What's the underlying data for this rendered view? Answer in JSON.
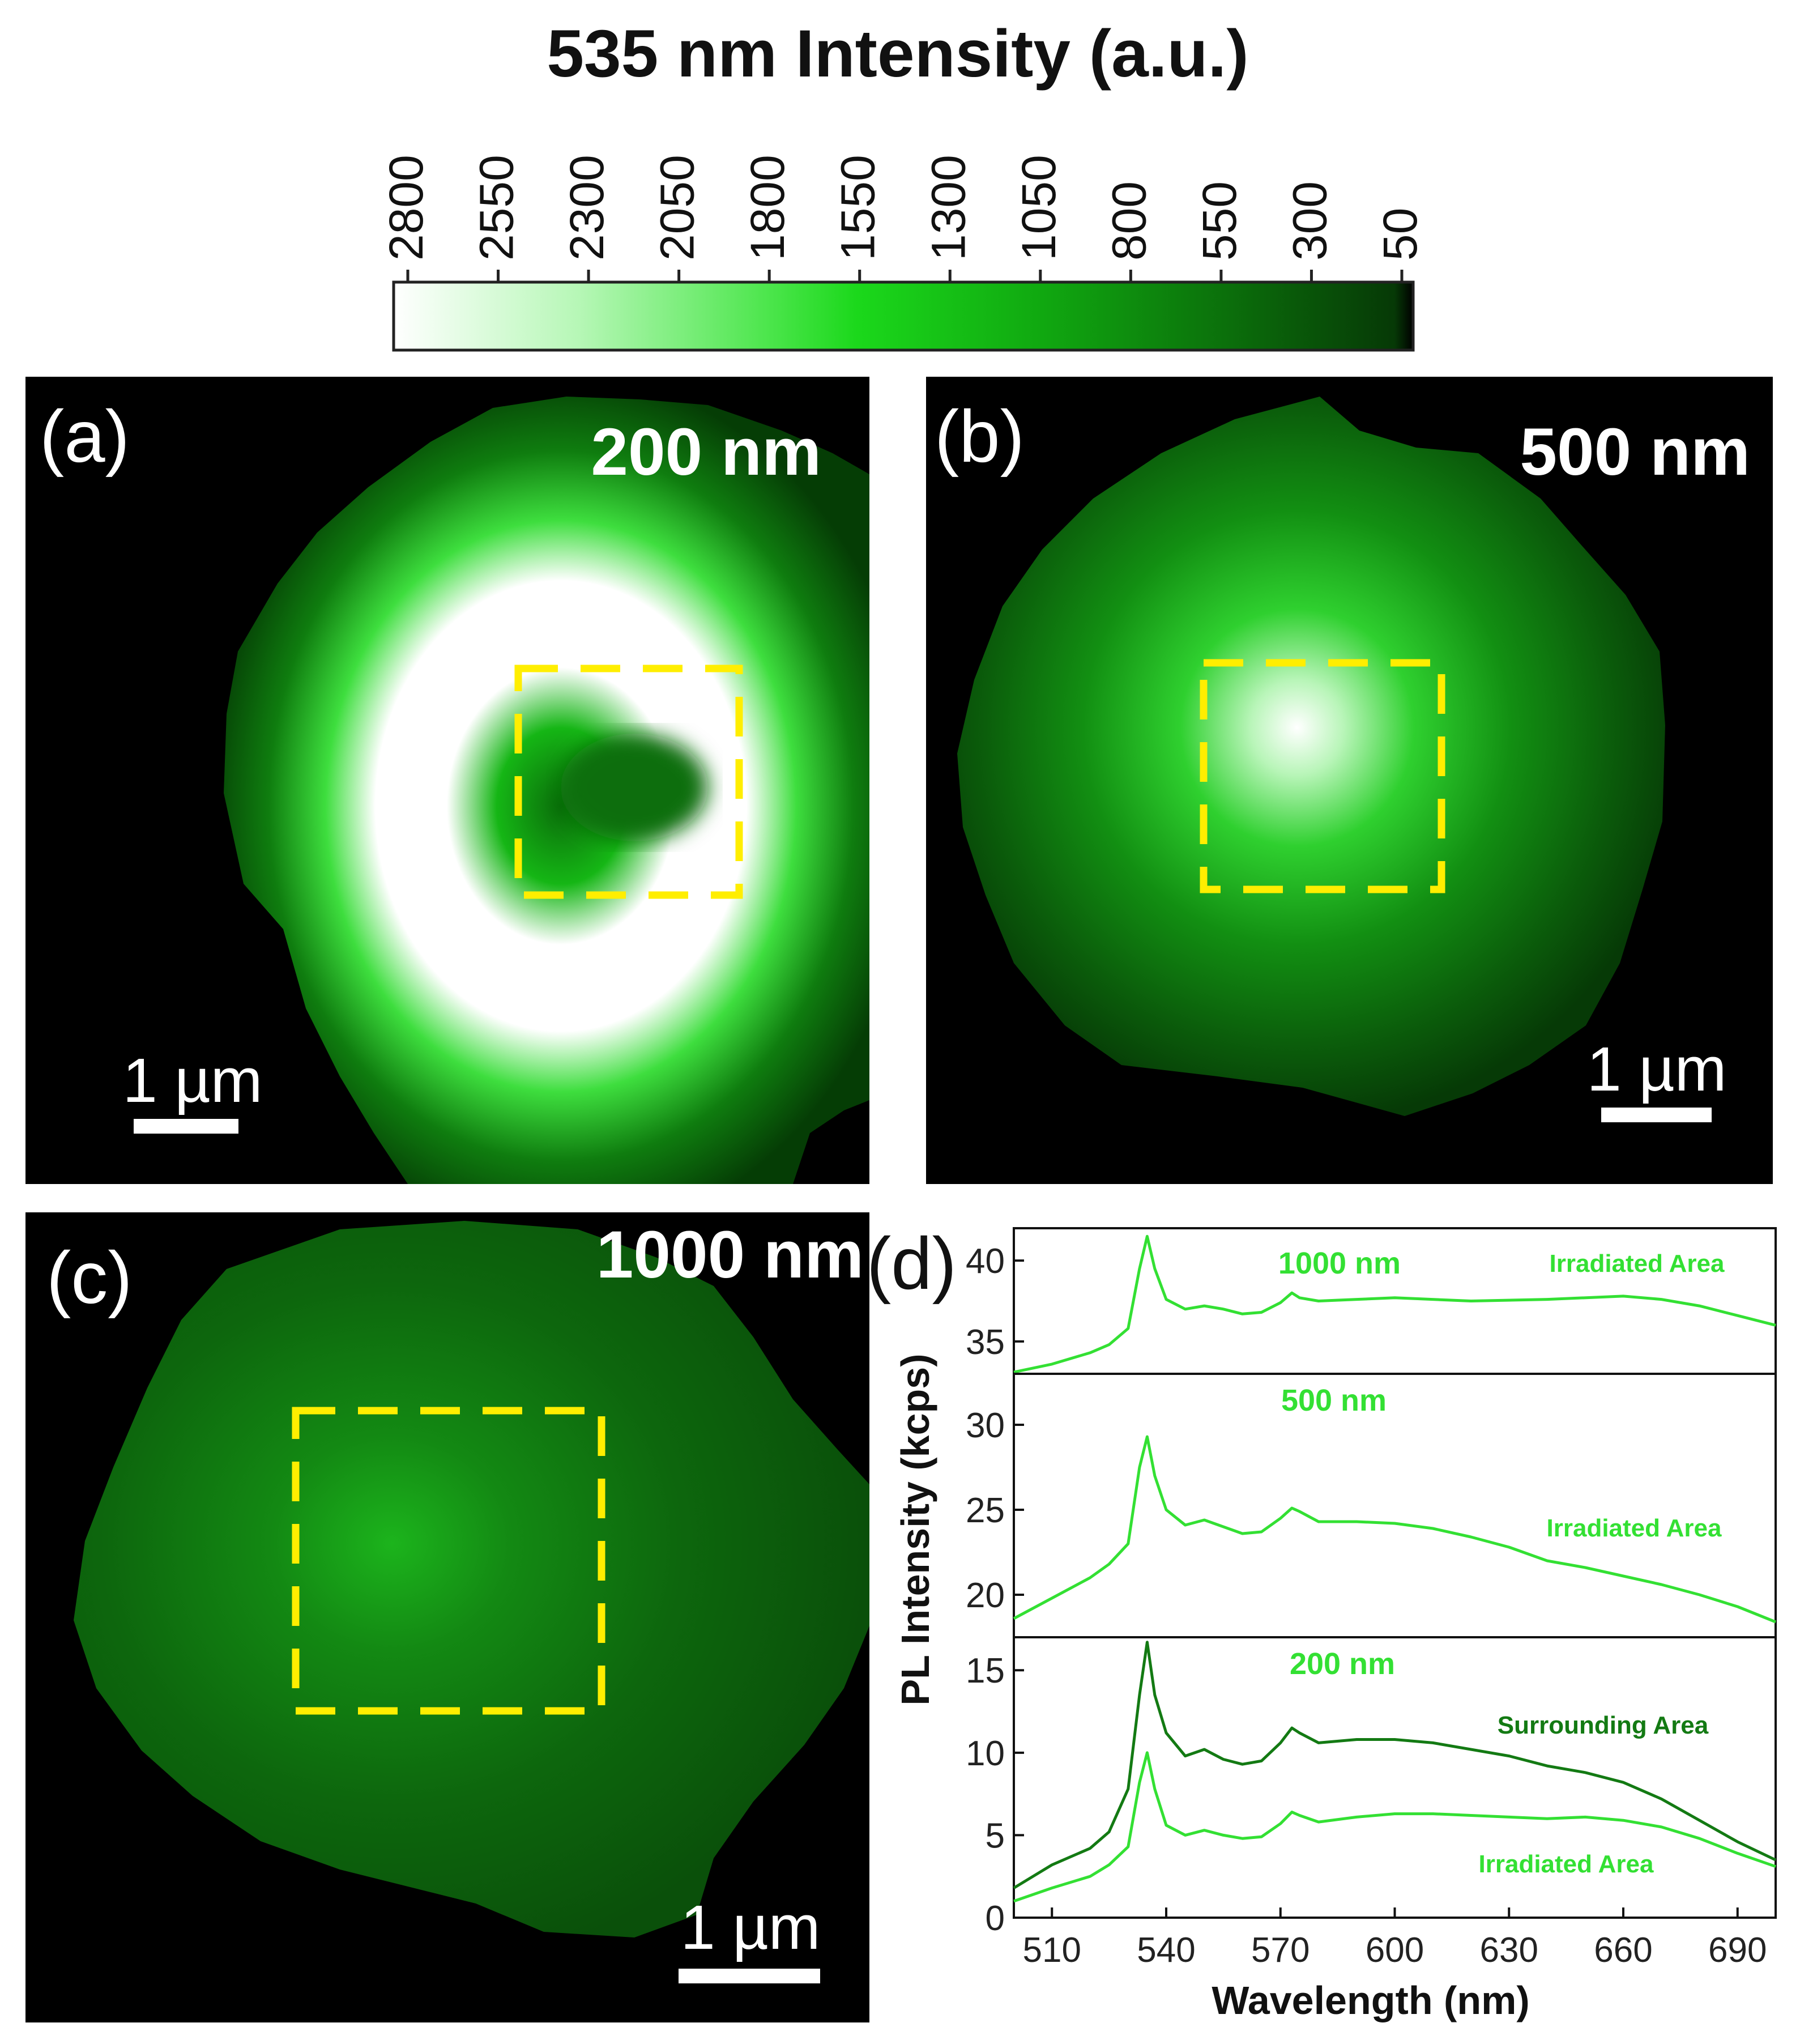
{
  "colorbar": {
    "title": "535 nm Intensity (a.u.)",
    "ticks": [
      "2800",
      "2550",
      "2300",
      "2050",
      "1800",
      "1550",
      "1300",
      "1050",
      "800",
      "550",
      "300",
      "50"
    ],
    "range": [
      2800,
      50
    ],
    "stops": [
      {
        "value": 2800,
        "color": "#ffffff"
      },
      {
        "value": 2300,
        "color": "#b6f7b6"
      },
      {
        "value": 1800,
        "color": "#4ee64e"
      },
      {
        "value": 1550,
        "color": "#1bd81b"
      },
      {
        "value": 1050,
        "color": "#10a810"
      },
      {
        "value": 550,
        "color": "#0b6f0b"
      },
      {
        "value": 100,
        "color": "#063906"
      },
      {
        "value": 50,
        "color": "#000000"
      }
    ]
  },
  "maps": [
    {
      "label": "(a)",
      "thickness": "200 nm",
      "scalebar": "1 µm",
      "pattern": "ring",
      "roi_color": "#ffee00"
    },
    {
      "label": "(b)",
      "thickness": "500 nm",
      "scalebar": "1 µm",
      "pattern": "centered",
      "roi_color": "#ffee00"
    },
    {
      "label": "(c)",
      "thickness": "1000 nm",
      "scalebar": "1 µm",
      "pattern": "dim",
      "roi_color": "#ffee00"
    }
  ],
  "spectra": {
    "label": "(d)",
    "xlabel": "Wavelength (nm)",
    "ylabel": "PL Intensity (kcps)",
    "xlim": [
      500,
      700
    ],
    "xticks": [
      510,
      540,
      570,
      600,
      630,
      660,
      690
    ],
    "chart_data": [
      {
        "type": "line",
        "panel": "top",
        "title": "1000 nm",
        "ylim": [
          33,
          42
        ],
        "yticks": [
          35,
          40
        ],
        "series": [
          {
            "name": "Irradiated Area",
            "color": "#33e033",
            "x": [
              500,
              510,
              520,
              525,
              530,
              533,
              535,
              537,
              540,
              545,
              550,
              555,
              560,
              565,
              570,
              573,
              575,
              580,
              590,
              600,
              620,
              640,
              660,
              670,
              680,
              690,
              700
            ],
            "y": [
              33.1,
              33.6,
              34.3,
              34.8,
              35.8,
              39.5,
              41.5,
              39.5,
              37.6,
              37.0,
              37.2,
              37.0,
              36.7,
              36.8,
              37.4,
              38.0,
              37.7,
              37.5,
              37.6,
              37.7,
              37.5,
              37.6,
              37.8,
              37.6,
              37.2,
              36.6,
              36.0
            ]
          }
        ]
      },
      {
        "type": "line",
        "panel": "middle",
        "title": "500 nm",
        "ylim": [
          17.5,
          33
        ],
        "yticks": [
          20,
          25,
          30
        ],
        "series": [
          {
            "name": "Irradiated Area",
            "color": "#33e033",
            "x": [
              500,
              510,
              520,
              525,
              530,
              533,
              535,
              537,
              540,
              545,
              550,
              555,
              560,
              565,
              570,
              573,
              575,
              580,
              590,
              600,
              610,
              620,
              630,
              640,
              650,
              660,
              670,
              680,
              690,
              700
            ],
            "y": [
              18.6,
              19.8,
              21.0,
              21.8,
              23.0,
              27.5,
              29.3,
              27.0,
              25.0,
              24.1,
              24.4,
              24.0,
              23.6,
              23.7,
              24.5,
              25.1,
              24.9,
              24.3,
              24.3,
              24.2,
              23.9,
              23.4,
              22.8,
              22.0,
              21.6,
              21.1,
              20.6,
              20.0,
              19.3,
              18.4
            ]
          }
        ]
      },
      {
        "type": "line",
        "panel": "bottom",
        "title": "200 nm",
        "ylim": [
          0,
          17
        ],
        "yticks": [
          0,
          5,
          10,
          15
        ],
        "series": [
          {
            "name": "Surrounding Area",
            "color": "#137a13",
            "x": [
              500,
              510,
              520,
              525,
              530,
              533,
              535,
              537,
              540,
              545,
              550,
              555,
              560,
              565,
              570,
              573,
              575,
              580,
              590,
              600,
              610,
              620,
              630,
              640,
              650,
              660,
              670,
              680,
              690,
              700
            ],
            "y": [
              1.8,
              3.2,
              4.2,
              5.2,
              7.8,
              13.5,
              16.7,
              13.5,
              11.2,
              9.8,
              10.2,
              9.6,
              9.3,
              9.5,
              10.6,
              11.5,
              11.2,
              10.6,
              10.8,
              10.8,
              10.6,
              10.2,
              9.8,
              9.2,
              8.8,
              8.2,
              7.2,
              5.9,
              4.6,
              3.5
            ]
          },
          {
            "name": "Irradiated Area",
            "color": "#33e033",
            "x": [
              500,
              510,
              520,
              525,
              530,
              533,
              535,
              537,
              540,
              545,
              550,
              555,
              560,
              565,
              570,
              573,
              575,
              580,
              590,
              600,
              610,
              620,
              630,
              640,
              650,
              660,
              670,
              680,
              690,
              700
            ],
            "y": [
              1.0,
              1.8,
              2.5,
              3.2,
              4.3,
              8.2,
              10.0,
              7.8,
              5.6,
              5.0,
              5.3,
              5.0,
              4.8,
              4.9,
              5.7,
              6.4,
              6.2,
              5.8,
              6.1,
              6.3,
              6.3,
              6.2,
              6.1,
              6.0,
              6.1,
              5.9,
              5.5,
              4.8,
              3.9,
              3.1
            ]
          }
        ]
      }
    ]
  }
}
